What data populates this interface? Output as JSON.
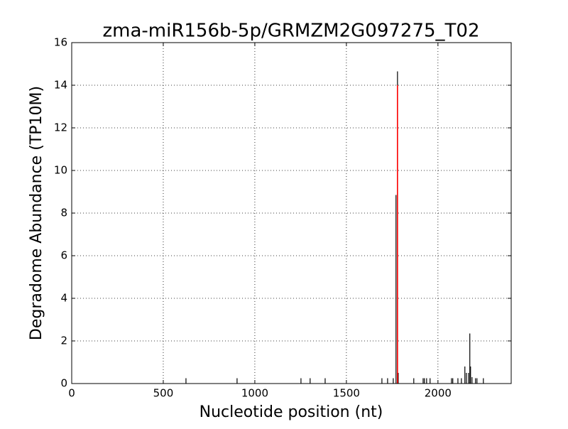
{
  "chart_data": {
    "type": "stem",
    "title": "zma-miR156b-5p/GRMZM2G097275_T02",
    "x_label": "Nucleotide position (nt)",
    "y_label": "Degradome Abundance (TP10M)",
    "xlim": [
      0,
      2400
    ],
    "xticks": [
      0,
      500,
      1000,
      1500,
      2000
    ],
    "ylim": [
      0,
      16
    ],
    "yticks": [
      0,
      2,
      4,
      6,
      8,
      10,
      12,
      14,
      16
    ],
    "grid": true,
    "series": [
      {
        "color": "#000000",
        "x": [
          624,
          903,
          1252,
          1302,
          1384,
          1694,
          1725,
          1756,
          1771,
          1779,
          1783,
          1868,
          1919,
          1926,
          1938,
          1957,
          2074,
          2081,
          2109,
          2128,
          2147,
          2155,
          2167,
          2174,
          2178,
          2186,
          2205,
          2213,
          2248
        ],
        "values": [
          0.25,
          0.25,
          0.25,
          0.25,
          0.25,
          0.25,
          0.25,
          0.25,
          8.85,
          14.65,
          0.5,
          0.25,
          0.25,
          0.25,
          0.25,
          0.25,
          0.25,
          0.25,
          0.25,
          0.25,
          0.8,
          0.5,
          0.5,
          2.35,
          0.8,
          0.3,
          0.25,
          0.25,
          0.25
        ]
      },
      {
        "color": "#ff0000",
        "x": [
          1779
        ],
        "values": [
          14
        ]
      }
    ]
  }
}
